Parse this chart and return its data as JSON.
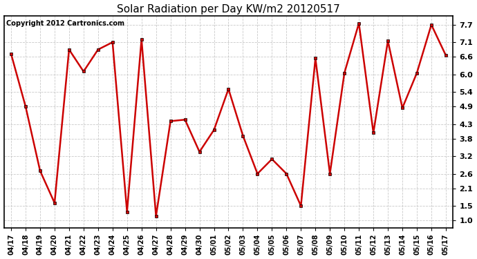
{
  "title": "Solar Radiation per Day KW/m2 20120517",
  "copyright": "Copyright 2012 Cartronics.com",
  "labels": [
    "04/17",
    "04/18",
    "04/19",
    "04/20",
    "04/21",
    "04/22",
    "04/23",
    "04/24",
    "04/25",
    "04/26",
    "04/27",
    "04/28",
    "04/29",
    "04/30",
    "05/01",
    "05/02",
    "05/03",
    "05/04",
    "05/05",
    "05/06",
    "05/07",
    "05/08",
    "05/09",
    "05/10",
    "05/11",
    "05/12",
    "05/13",
    "05/14",
    "05/15",
    "05/16",
    "05/17"
  ],
  "values": [
    6.7,
    4.9,
    2.7,
    1.6,
    6.85,
    6.1,
    6.85,
    7.1,
    1.3,
    7.2,
    1.15,
    4.4,
    4.45,
    3.35,
    4.1,
    5.5,
    3.9,
    2.6,
    3.1,
    2.6,
    1.5,
    6.55,
    2.6,
    6.05,
    7.75,
    4.0,
    7.15,
    4.85,
    6.05,
    7.7,
    6.65
  ],
  "line_color": "#cc0000",
  "marker": "s",
  "marker_size": 3,
  "bg_color": "#ffffff",
  "grid_color": "#bbbbbb",
  "yticks": [
    1.0,
    1.5,
    2.1,
    2.6,
    3.2,
    3.8,
    4.3,
    4.9,
    5.4,
    6.0,
    6.6,
    7.1,
    7.7
  ],
  "ymin": 0.75,
  "ymax": 8.0,
  "title_fontsize": 11,
  "tick_fontsize": 7,
  "copyright_fontsize": 7
}
